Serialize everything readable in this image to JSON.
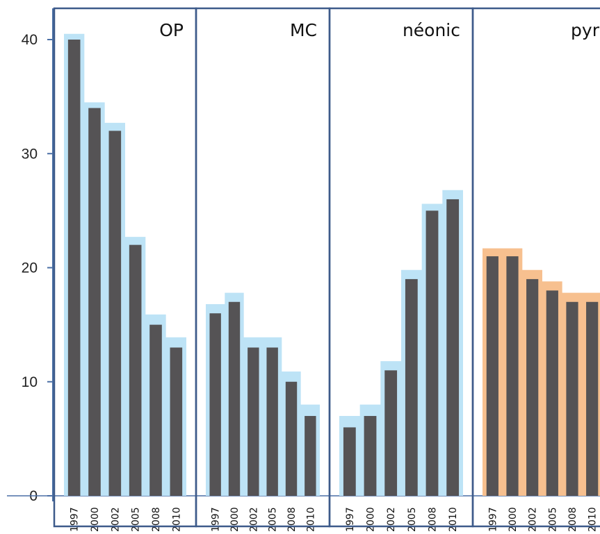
{
  "chart_data": {
    "type": "bar",
    "title": "",
    "xlabel": "",
    "ylabel": "",
    "ylim": [
      0,
      40
    ],
    "yticks": [
      0,
      10,
      20,
      30,
      40
    ],
    "categories": [
      "1997",
      "2000",
      "2002",
      "2005",
      "2008",
      "2010"
    ],
    "grid": false,
    "legend": "none",
    "panels": [
      {
        "title": "OP",
        "values": [
          40,
          34,
          32,
          22,
          15,
          13
        ],
        "envelope": [
          40.5,
          34.5,
          32.7,
          22.7,
          15.9,
          13.9
        ],
        "envelope_color": "#bde3f6"
      },
      {
        "title": "MC",
        "values": [
          16,
          17,
          13,
          13,
          10,
          7
        ],
        "envelope": [
          16.8,
          17.8,
          13.9,
          13.9,
          10.9,
          8
        ],
        "envelope_color": "#bde3f6"
      },
      {
        "title": "néonic",
        "values": [
          6,
          7,
          11,
          19,
          25,
          26
        ],
        "envelope": [
          7,
          8,
          11.8,
          19.8,
          25.6,
          26.8
        ],
        "envelope_color": "#bde3f6"
      },
      {
        "title": "pyr",
        "values": [
          21,
          21,
          19,
          18,
          17,
          17
        ],
        "envelope": [
          21.7,
          21.7,
          19.8,
          18.8,
          17.8,
          17.8
        ],
        "envelope_color": "#f7c08f"
      }
    ],
    "colors": {
      "bar": "#555355",
      "frame": "#3d5a8a",
      "axis": "#4a6fa5"
    }
  }
}
